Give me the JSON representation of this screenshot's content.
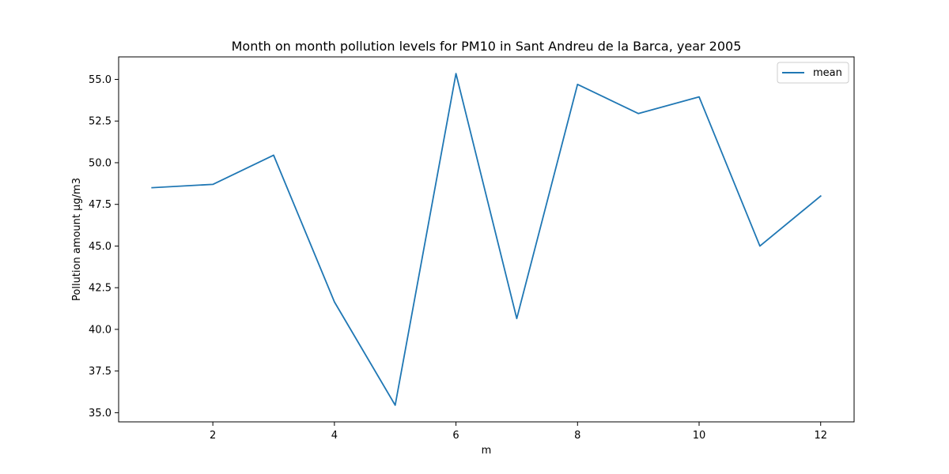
{
  "chart_data": {
    "type": "line",
    "title": "Month on month pollution levels for PM10 in Sant Andreu de la Barca, year 2005",
    "xlabel": "m",
    "ylabel": "Pollution amount µg/m3",
    "x": [
      1,
      2,
      3,
      4,
      5,
      6,
      7,
      8,
      9,
      10,
      11,
      12
    ],
    "series": [
      {
        "name": "mean",
        "color": "#1f77b4",
        "values": [
          48.5,
          48.7,
          50.45,
          41.65,
          35.45,
          55.35,
          40.65,
          54.7,
          52.95,
          53.95,
          45.0,
          48.0
        ]
      }
    ],
    "xlim": [
      0.45,
      12.55
    ],
    "ylim": [
      34.45,
      56.35
    ],
    "xticks": [
      2,
      4,
      6,
      8,
      10,
      12
    ],
    "xtick_labels": [
      "2",
      "4",
      "6",
      "8",
      "10",
      "12"
    ],
    "yticks": [
      35.0,
      37.5,
      40.0,
      42.5,
      45.0,
      47.5,
      50.0,
      52.5,
      55.0
    ],
    "ytick_labels": [
      "35.0",
      "37.5",
      "40.0",
      "42.5",
      "45.0",
      "47.5",
      "50.0",
      "52.5",
      "55.0"
    ],
    "grid": false,
    "legend_position": "top-right"
  }
}
